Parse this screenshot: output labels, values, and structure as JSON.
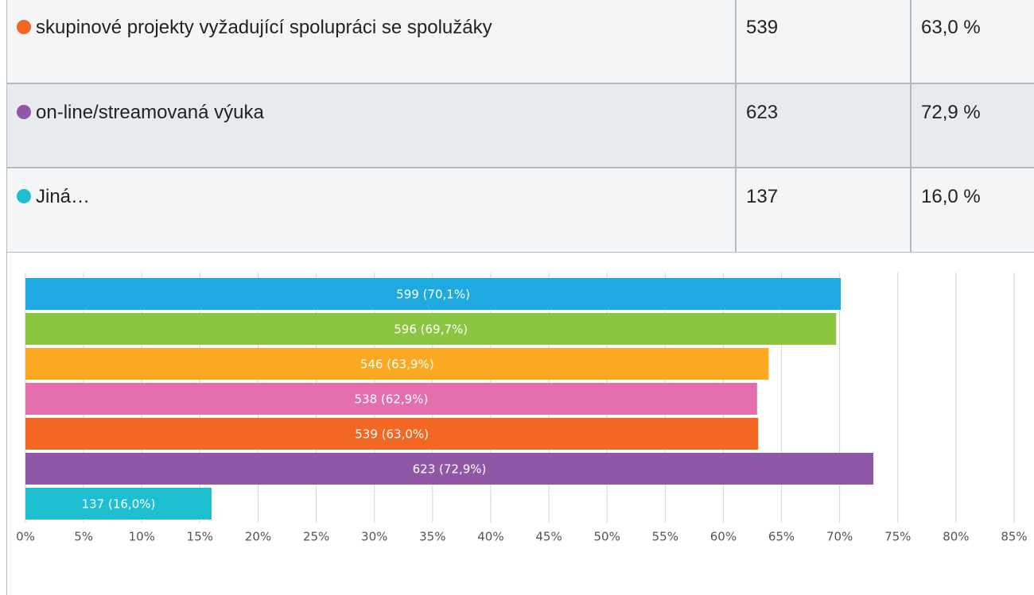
{
  "table": {
    "rows": [
      {
        "color": "#f26722",
        "label": "skupinové projekty vyžadující spolupráci se spolužáky",
        "count": "539",
        "percent": "63,0 %"
      },
      {
        "color": "#9057a7",
        "label": "on-line/streamovaná výuka",
        "count": "623",
        "percent": "72,9 %"
      },
      {
        "color": "#1ebfd0",
        "label": "Jiná…",
        "count": "137",
        "percent": "16,0 %"
      }
    ]
  },
  "chart_data": {
    "type": "barh",
    "values": [
      70.1,
      69.7,
      63.9,
      62.9,
      63.0,
      72.9,
      16.0
    ],
    "value_labels": [
      "599 (70,1%)",
      "596 (69,7%)",
      "546 (63,9%)",
      "538 (62,9%)",
      "539 (63,0%)",
      "623 (72,9%)",
      "137 (16,0%)"
    ],
    "colors": [
      "#1ea9e1",
      "#8bc541",
      "#fba823",
      "#e46fad",
      "#f26722",
      "#9057a7",
      "#1ebfd0"
    ],
    "xlim": [
      0,
      85
    ],
    "xticks": [
      {
        "value": 0,
        "label": "0%"
      },
      {
        "value": 5,
        "label": "5%"
      },
      {
        "value": 10,
        "label": "10%"
      },
      {
        "value": 15,
        "label": "15%"
      },
      {
        "value": 20,
        "label": "20%"
      },
      {
        "value": 25,
        "label": "25%"
      },
      {
        "value": 30,
        "label": "30%"
      },
      {
        "value": 35,
        "label": "35%"
      },
      {
        "value": 40,
        "label": "40%"
      },
      {
        "value": 45,
        "label": "45%"
      },
      {
        "value": 50,
        "label": "50%"
      },
      {
        "value": 55,
        "label": "55%"
      },
      {
        "value": 60,
        "label": "60%"
      },
      {
        "value": 65,
        "label": "65%"
      },
      {
        "value": 70,
        "label": "70%"
      },
      {
        "value": 75,
        "label": "75%"
      },
      {
        "value": 80,
        "label": "80%"
      },
      {
        "value": 85,
        "label": "85%"
      }
    ],
    "grid": true
  }
}
